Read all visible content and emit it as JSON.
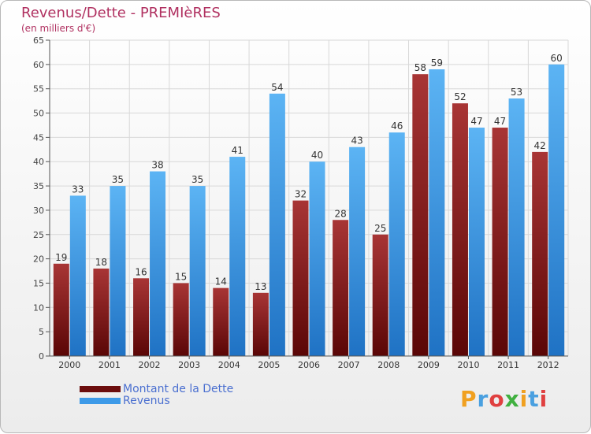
{
  "chart_data": {
    "type": "bar",
    "title": "Revenus/Dette - PREMIèRES",
    "subtitle": "(en milliers d'€)",
    "categories": [
      "2000",
      "2001",
      "2002",
      "2003",
      "2004",
      "2005",
      "2006",
      "2007",
      "2008",
      "2009",
      "2010",
      "2011",
      "2012"
    ],
    "series": [
      {
        "name": "Montant de la Dette",
        "color": "#7a1a1a",
        "values": [
          19,
          18,
          16,
          15,
          14,
          13,
          32,
          28,
          25,
          58,
          52,
          47,
          42
        ]
      },
      {
        "name": "Revenus",
        "color": "#3d9ae8",
        "values": [
          33,
          35,
          38,
          35,
          41,
          54,
          40,
          43,
          46,
          59,
          47,
          53,
          60
        ]
      }
    ],
    "ylim": [
      0,
      65
    ],
    "yticks": [
      0,
      5,
      10,
      15,
      20,
      25,
      30,
      35,
      40,
      45,
      50,
      55,
      60,
      65
    ],
    "grid": true,
    "legend_position": "bottom-left"
  },
  "logo_text": "Proxiti",
  "logo_colors": [
    "#f0a020",
    "#4aa0e0",
    "#e04040",
    "#40b040"
  ]
}
